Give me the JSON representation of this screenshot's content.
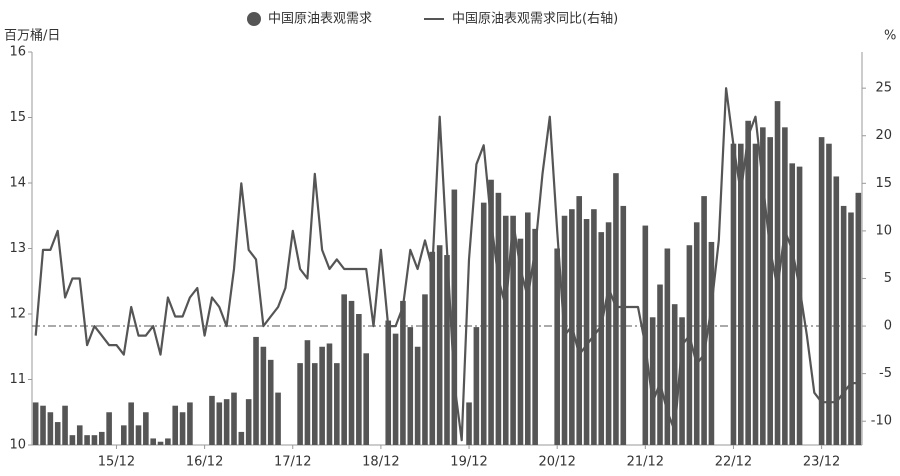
{
  "chart_data": {
    "type": "bar-line",
    "legend": [
      "中国原油表观需求",
      "中国原油表观需求同比(右轴)"
    ],
    "y_label": "百万桶/日",
    "y2_label": "%",
    "categories": [
      null,
      null,
      null,
      null,
      null,
      null,
      null,
      null,
      null,
      null,
      null,
      "15/12",
      null,
      null,
      null,
      null,
      null,
      null,
      null,
      null,
      null,
      null,
      null,
      "16/12",
      null,
      null,
      null,
      null,
      null,
      null,
      null,
      null,
      null,
      null,
      null,
      "17/12",
      null,
      null,
      null,
      null,
      null,
      null,
      null,
      null,
      null,
      null,
      null,
      "18/12",
      null,
      null,
      null,
      null,
      null,
      null,
      null,
      null,
      null,
      null,
      null,
      "19/12",
      null,
      null,
      null,
      null,
      null,
      null,
      null,
      null,
      null,
      null,
      null,
      "20/12",
      null,
      null,
      null,
      null,
      null,
      null,
      null,
      null,
      null,
      null,
      null,
      "21/12",
      null,
      null,
      null,
      null,
      null,
      null,
      null,
      null,
      null,
      null,
      null,
      "22/12",
      null,
      null,
      null,
      null,
      null,
      null,
      null,
      null,
      null,
      null,
      null,
      "23/12",
      null,
      null,
      null,
      null,
      null
    ],
    "series": [
      {
        "name": "中国原油表观需求",
        "color": "#555555",
        "kind": "bar",
        "values": [
          10.65,
          10.6,
          10.5,
          10.35,
          10.6,
          10.15,
          10.3,
          10.15,
          10.15,
          10.2,
          10.5,
          null,
          10.3,
          10.65,
          10.3,
          10.5,
          10.1,
          10.05,
          10.1,
          10.6,
          10.5,
          10.65,
          null,
          null,
          10.75,
          10.65,
          10.7,
          10.8,
          10.2,
          10.7,
          11.65,
          11.5,
          11.3,
          10.8,
          null,
          null,
          11.25,
          11.6,
          11.25,
          11.5,
          11.55,
          11.25,
          12.3,
          12.2,
          12.0,
          11.4,
          null,
          null,
          11.9,
          11.7,
          12.2,
          11.8,
          11.5,
          12.3,
          12.95,
          13.05,
          12.9,
          13.9,
          null,
          10.65,
          11.8,
          13.7,
          14.05,
          13.85,
          13.5,
          13.5,
          13.15,
          13.55,
          13.3,
          null,
          null,
          13.0,
          13.5,
          13.6,
          13.8,
          13.45,
          13.6,
          13.25,
          13.4,
          14.15,
          13.65,
          null,
          null,
          13.35,
          11.95,
          12.45,
          13.0,
          12.15,
          11.95,
          13.05,
          13.4,
          13.8,
          13.1,
          null,
          null,
          14.6,
          14.6,
          14.95,
          14.6,
          14.85,
          14.7,
          15.25,
          14.85,
          14.3,
          14.25,
          null,
          null,
          14.7,
          14.6,
          14.1,
          13.65,
          13.55,
          13.85
        ]
      },
      {
        "name": "中国原油表观需求同比(右轴)",
        "color": "#555555",
        "kind": "line",
        "axis": "y2",
        "values": [
          -1,
          8,
          8,
          10,
          3,
          5,
          5,
          -2,
          0,
          -1,
          -2,
          -2,
          -3,
          2,
          -1,
          -1,
          0,
          -3,
          3,
          1,
          1,
          3,
          4,
          -1,
          3,
          2,
          0,
          6,
          15,
          8,
          7,
          0,
          1,
          2,
          4,
          10,
          6,
          5,
          16,
          8,
          6,
          7,
          6,
          6,
          6,
          6,
          0,
          8,
          0,
          0,
          2,
          8,
          6,
          9,
          6,
          22,
          8,
          -6,
          -12,
          7,
          17,
          19,
          11,
          5,
          2,
          11,
          6,
          3,
          8,
          16,
          22,
          10,
          -1,
          0,
          -3,
          -2,
          -1,
          0,
          4,
          2,
          2,
          2,
          2,
          -2,
          -8,
          -6,
          -9,
          -11,
          -2,
          -1,
          -4,
          -3,
          2,
          9,
          25,
          19,
          14,
          20,
          22,
          15,
          8,
          4,
          10,
          8,
          4,
          -1,
          -7,
          -8,
          -8,
          -8,
          -7,
          -6,
          -6
        ]
      }
    ],
    "ylim": [
      10,
      16
    ],
    "yticks": [
      10,
      11,
      12,
      13,
      14,
      15,
      16
    ],
    "y2lim": [
      -12.5,
      28.8
    ],
    "y2ticks": [
      -10,
      -5,
      0,
      5,
      10,
      15,
      20,
      25
    ]
  }
}
